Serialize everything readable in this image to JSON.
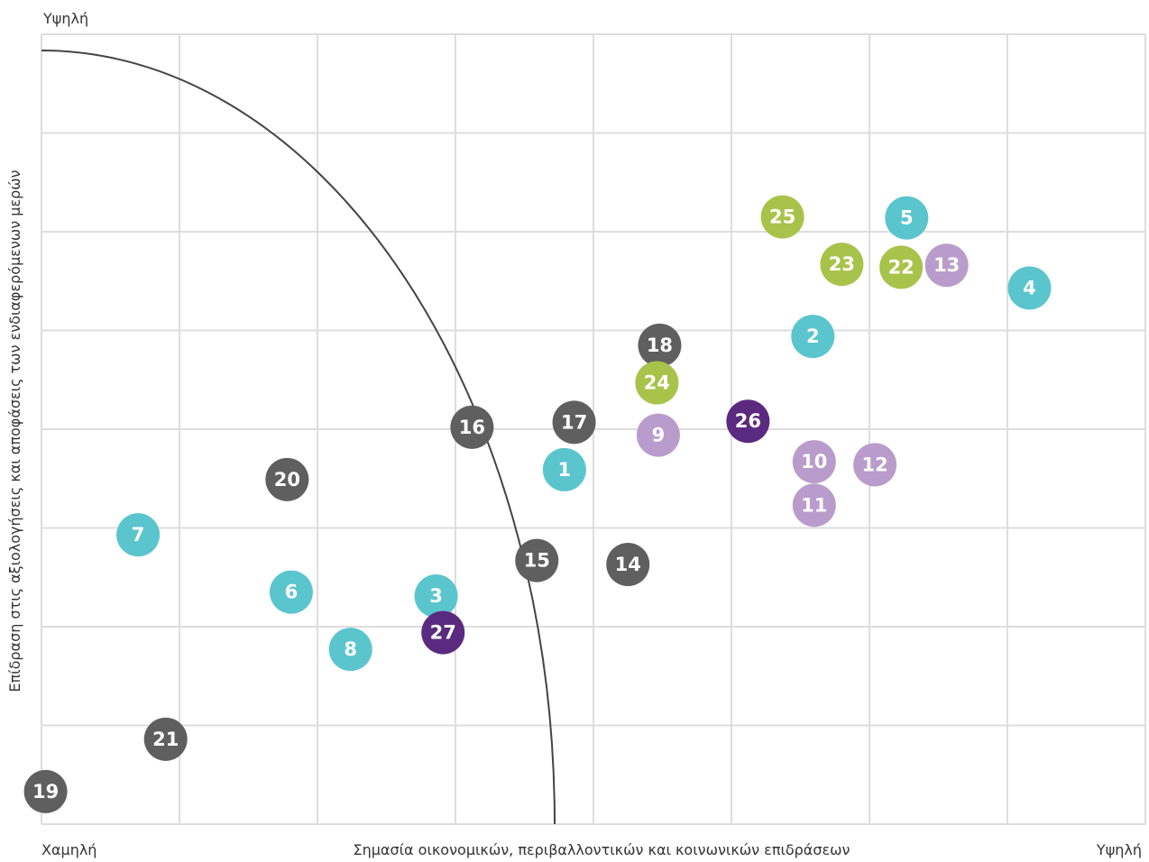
{
  "chart_data": {
    "type": "scatter",
    "title": "",
    "xlabel": "Σημασία οικονομικών, περιβαλλοντικών και κοινωνικών επιδράσεων",
    "ylabel": "Επίδραση στις αξιολογήσεις και αποφάσεις των ενδιαφερόμενων μερών",
    "x_low_label": "Χαμηλή",
    "x_high_label": "Υψηλή",
    "y_high_label": "Υψηλή",
    "xlim": [
      0,
      8
    ],
    "ylim": [
      0,
      8
    ],
    "grid": true,
    "colors": {
      "teal": "#5bc5ce",
      "gray": "#5f5f5f",
      "green": "#a8c34a",
      "lilac": "#b99ccb",
      "purple": "#5a2a80",
      "grid": "#dddddd",
      "curve": "#444444"
    },
    "points": [
      {
        "label": "1",
        "x": 3.79,
        "y": 3.59,
        "color": "teal"
      },
      {
        "label": "2",
        "x": 5.59,
        "y": 4.94,
        "color": "teal"
      },
      {
        "label": "3",
        "x": 2.86,
        "y": 2.31,
        "color": "teal"
      },
      {
        "label": "4",
        "x": 7.16,
        "y": 5.43,
        "color": "teal"
      },
      {
        "label": "5",
        "x": 6.27,
        "y": 6.14,
        "color": "teal"
      },
      {
        "label": "6",
        "x": 1.81,
        "y": 2.35,
        "color": "teal"
      },
      {
        "label": "7",
        "x": 0.7,
        "y": 2.93,
        "color": "teal"
      },
      {
        "label": "8",
        "x": 2.24,
        "y": 1.77,
        "color": "teal"
      },
      {
        "label": "9",
        "x": 4.47,
        "y": 3.94,
        "color": "lilac"
      },
      {
        "label": "10",
        "x": 5.6,
        "y": 3.67,
        "color": "lilac"
      },
      {
        "label": "11",
        "x": 5.6,
        "y": 3.23,
        "color": "lilac"
      },
      {
        "label": "12",
        "x": 6.04,
        "y": 3.64,
        "color": "lilac"
      },
      {
        "label": "13",
        "x": 6.56,
        "y": 5.66,
        "color": "lilac"
      },
      {
        "label": "14",
        "x": 4.25,
        "y": 2.63,
        "color": "gray"
      },
      {
        "label": "15",
        "x": 3.59,
        "y": 2.67,
        "color": "gray"
      },
      {
        "label": "16",
        "x": 3.12,
        "y": 4.02,
        "color": "gray"
      },
      {
        "label": "17",
        "x": 3.86,
        "y": 4.07,
        "color": "gray"
      },
      {
        "label": "18",
        "x": 4.48,
        "y": 4.85,
        "color": "gray"
      },
      {
        "label": "19",
        "x": 0.03,
        "y": 0.33,
        "color": "gray"
      },
      {
        "label": "20",
        "x": 1.78,
        "y": 3.49,
        "color": "gray"
      },
      {
        "label": "21",
        "x": 0.9,
        "y": 0.86,
        "color": "gray"
      },
      {
        "label": "22",
        "x": 6.23,
        "y": 5.64,
        "color": "green"
      },
      {
        "label": "23",
        "x": 5.8,
        "y": 5.67,
        "color": "green"
      },
      {
        "label": "24",
        "x": 4.46,
        "y": 4.47,
        "color": "green"
      },
      {
        "label": "25",
        "x": 5.37,
        "y": 6.15,
        "color": "green"
      },
      {
        "label": "26",
        "x": 5.12,
        "y": 4.08,
        "color": "purple"
      },
      {
        "label": "27",
        "x": 2.91,
        "y": 1.94,
        "color": "purple"
      }
    ]
  }
}
